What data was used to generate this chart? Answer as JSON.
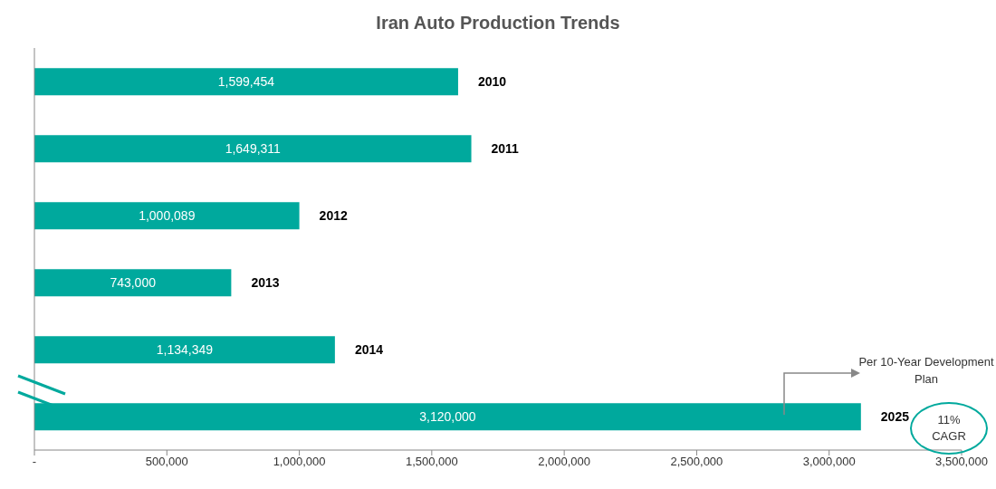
{
  "chart_data": {
    "type": "bar",
    "orientation": "horizontal",
    "title": "Iran Auto Production Trends",
    "categories": [
      "2010",
      "2011",
      "2012",
      "2013",
      "2014",
      "2025"
    ],
    "values": [
      1599454,
      1649311,
      1000089,
      743000,
      1134349,
      3120000
    ],
    "value_labels": [
      "1,599,454",
      "1,649,311",
      "1,000,089",
      "743,000",
      "1,134,349",
      "3,120,000"
    ],
    "color": "#00a99d",
    "xlim": [
      0,
      3500000
    ],
    "xticks": [
      {
        "value": 0,
        "label": "-"
      },
      {
        "value": 500000,
        "label": "500,000"
      },
      {
        "value": 1000000,
        "label": "1,000,000"
      },
      {
        "value": 1500000,
        "label": "1,500,000"
      },
      {
        "value": 2000000,
        "label": "2,000,000"
      },
      {
        "value": 2500000,
        "label": "2,500,000"
      },
      {
        "value": 3000000,
        "label": "3,000,000"
      },
      {
        "value": 3500000,
        "label": "3,500,000"
      }
    ],
    "grid": false,
    "legend": false,
    "annotations": [
      "Per 10-Year Development Plan",
      "11% CAGR"
    ]
  }
}
